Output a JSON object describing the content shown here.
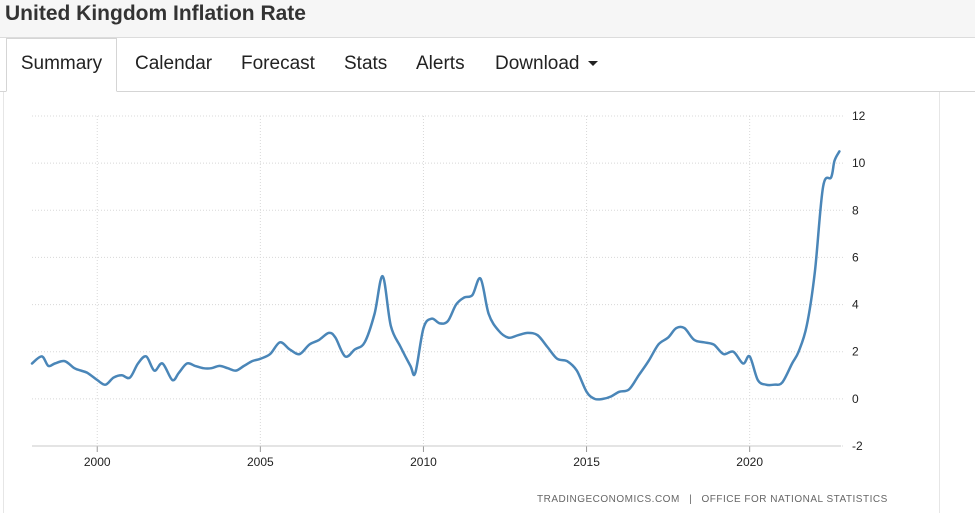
{
  "page": {
    "title": "United Kingdom Inflation Rate"
  },
  "tabs": [
    {
      "label": "Summary",
      "active": true
    },
    {
      "label": "Calendar"
    },
    {
      "label": "Forecast"
    },
    {
      "label": "Stats"
    },
    {
      "label": "Alerts"
    },
    {
      "label": "Download"
    }
  ],
  "source": {
    "site": "TRADINGECONOMICS.COM",
    "separator": "|",
    "agency": "OFFICE FOR NATIONAL STATISTICS"
  },
  "colors": {
    "line": "#4a86b8",
    "grid": "#d8d8d8"
  },
  "chart_data": {
    "type": "line",
    "title": "United Kingdom Inflation Rate",
    "xlabel": "",
    "ylabel": "",
    "grid": true,
    "xlim": [
      1998.0,
      2022.8
    ],
    "ylim": [
      -2,
      12
    ],
    "x_ticks": [
      2000,
      2005,
      2010,
      2015,
      2020
    ],
    "x_tick_labels": [
      "2000",
      "2005",
      "2010",
      "2015",
      "2020"
    ],
    "y_ticks": [
      -2,
      0,
      2,
      4,
      6,
      8,
      10,
      12
    ],
    "y_tick_labels": [
      "-2",
      "0",
      "2",
      "4",
      "6",
      "8",
      "10",
      "12"
    ],
    "y_axis_position": "right",
    "series": [
      {
        "name": "Inflation Rate",
        "x": [
          1998.0,
          1998.3,
          1998.5,
          1998.7,
          1999.0,
          1999.3,
          1999.5,
          1999.7,
          2000.0,
          2000.25,
          2000.5,
          2000.75,
          2001.0,
          2001.25,
          2001.5,
          2001.75,
          2002.0,
          2002.3,
          2002.5,
          2002.75,
          2003.0,
          2003.25,
          2003.5,
          2003.75,
          2004.0,
          2004.25,
          2004.5,
          2004.75,
          2005.0,
          2005.3,
          2005.6,
          2005.9,
          2006.2,
          2006.5,
          2006.8,
          2007.1,
          2007.3,
          2007.6,
          2007.9,
          2008.2,
          2008.5,
          2008.75,
          2009.0,
          2009.3,
          2009.6,
          2009.75,
          2010.0,
          2010.25,
          2010.5,
          2010.75,
          2011.0,
          2011.25,
          2011.5,
          2011.75,
          2012.0,
          2012.3,
          2012.6,
          2012.9,
          2013.2,
          2013.5,
          2013.8,
          2014.1,
          2014.4,
          2014.7,
          2015.0,
          2015.25,
          2015.5,
          2015.75,
          2016.0,
          2016.3,
          2016.6,
          2016.9,
          2017.2,
          2017.5,
          2017.75,
          2018.0,
          2018.3,
          2018.6,
          2018.9,
          2019.2,
          2019.5,
          2019.8,
          2020.0,
          2020.25,
          2020.5,
          2020.75,
          2021.0,
          2021.3,
          2021.5,
          2021.75,
          2022.0,
          2022.25,
          2022.5,
          2022.6,
          2022.75
        ],
        "values": [
          1.5,
          1.8,
          1.4,
          1.5,
          1.6,
          1.3,
          1.2,
          1.1,
          0.8,
          0.6,
          0.9,
          1.0,
          0.9,
          1.5,
          1.8,
          1.2,
          1.5,
          0.8,
          1.1,
          1.5,
          1.4,
          1.3,
          1.3,
          1.4,
          1.3,
          1.2,
          1.4,
          1.6,
          1.7,
          1.9,
          2.4,
          2.1,
          1.9,
          2.3,
          2.5,
          2.8,
          2.6,
          1.8,
          2.1,
          2.4,
          3.6,
          5.2,
          3.1,
          2.2,
          1.4,
          1.1,
          3.0,
          3.4,
          3.2,
          3.3,
          4.0,
          4.3,
          4.4,
          5.1,
          3.6,
          2.9,
          2.6,
          2.7,
          2.8,
          2.7,
          2.2,
          1.7,
          1.6,
          1.2,
          0.3,
          0.0,
          0.0,
          0.1,
          0.3,
          0.4,
          1.0,
          1.6,
          2.3,
          2.6,
          3.0,
          3.0,
          2.5,
          2.4,
          2.3,
          1.9,
          2.0,
          1.5,
          1.8,
          0.8,
          0.6,
          0.6,
          0.7,
          1.5,
          2.0,
          3.1,
          5.4,
          9.0,
          9.4,
          10.1,
          10.5
        ]
      }
    ]
  }
}
